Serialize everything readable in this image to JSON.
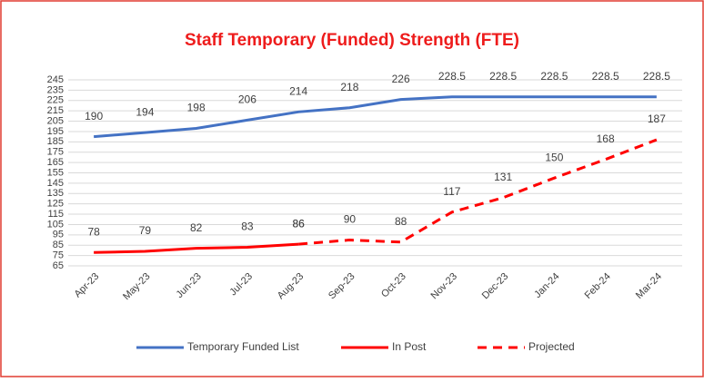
{
  "chart_data": {
    "type": "line",
    "title": "Staff Temporary (Funded) Strength (FTE)",
    "categories": [
      "Apr-23",
      "May-23",
      "Jun-23",
      "Jul-23",
      "Aug-23",
      "Sep-23",
      "Oct-23",
      "Nov-23",
      "Dec-23",
      "Jan-24",
      "Feb-24",
      "Mar-24"
    ],
    "series": [
      {
        "name": "Temporary Funded List",
        "color": "#4472c4",
        "dashed": false,
        "values": [
          190,
          194,
          198,
          206,
          214,
          218,
          226,
          228.5,
          228.5,
          228.5,
          228.5,
          228.5
        ]
      },
      {
        "name": "In Post",
        "color": "#ff0000",
        "dashed": false,
        "values": [
          78,
          79,
          82,
          83,
          86,
          null,
          null,
          null,
          null,
          null,
          null,
          null
        ]
      },
      {
        "name": "Projected",
        "color": "#ff0000",
        "dashed": true,
        "values": [
          null,
          null,
          null,
          null,
          86,
          90,
          88,
          117,
          131,
          150,
          168,
          187
        ]
      }
    ],
    "ylim": [
      65,
      245
    ],
    "yticks": [
      65,
      75,
      85,
      95,
      105,
      115,
      125,
      135,
      145,
      155,
      165,
      175,
      185,
      195,
      205,
      215,
      225,
      235,
      245
    ],
    "grid": true,
    "legend": "bottom"
  }
}
